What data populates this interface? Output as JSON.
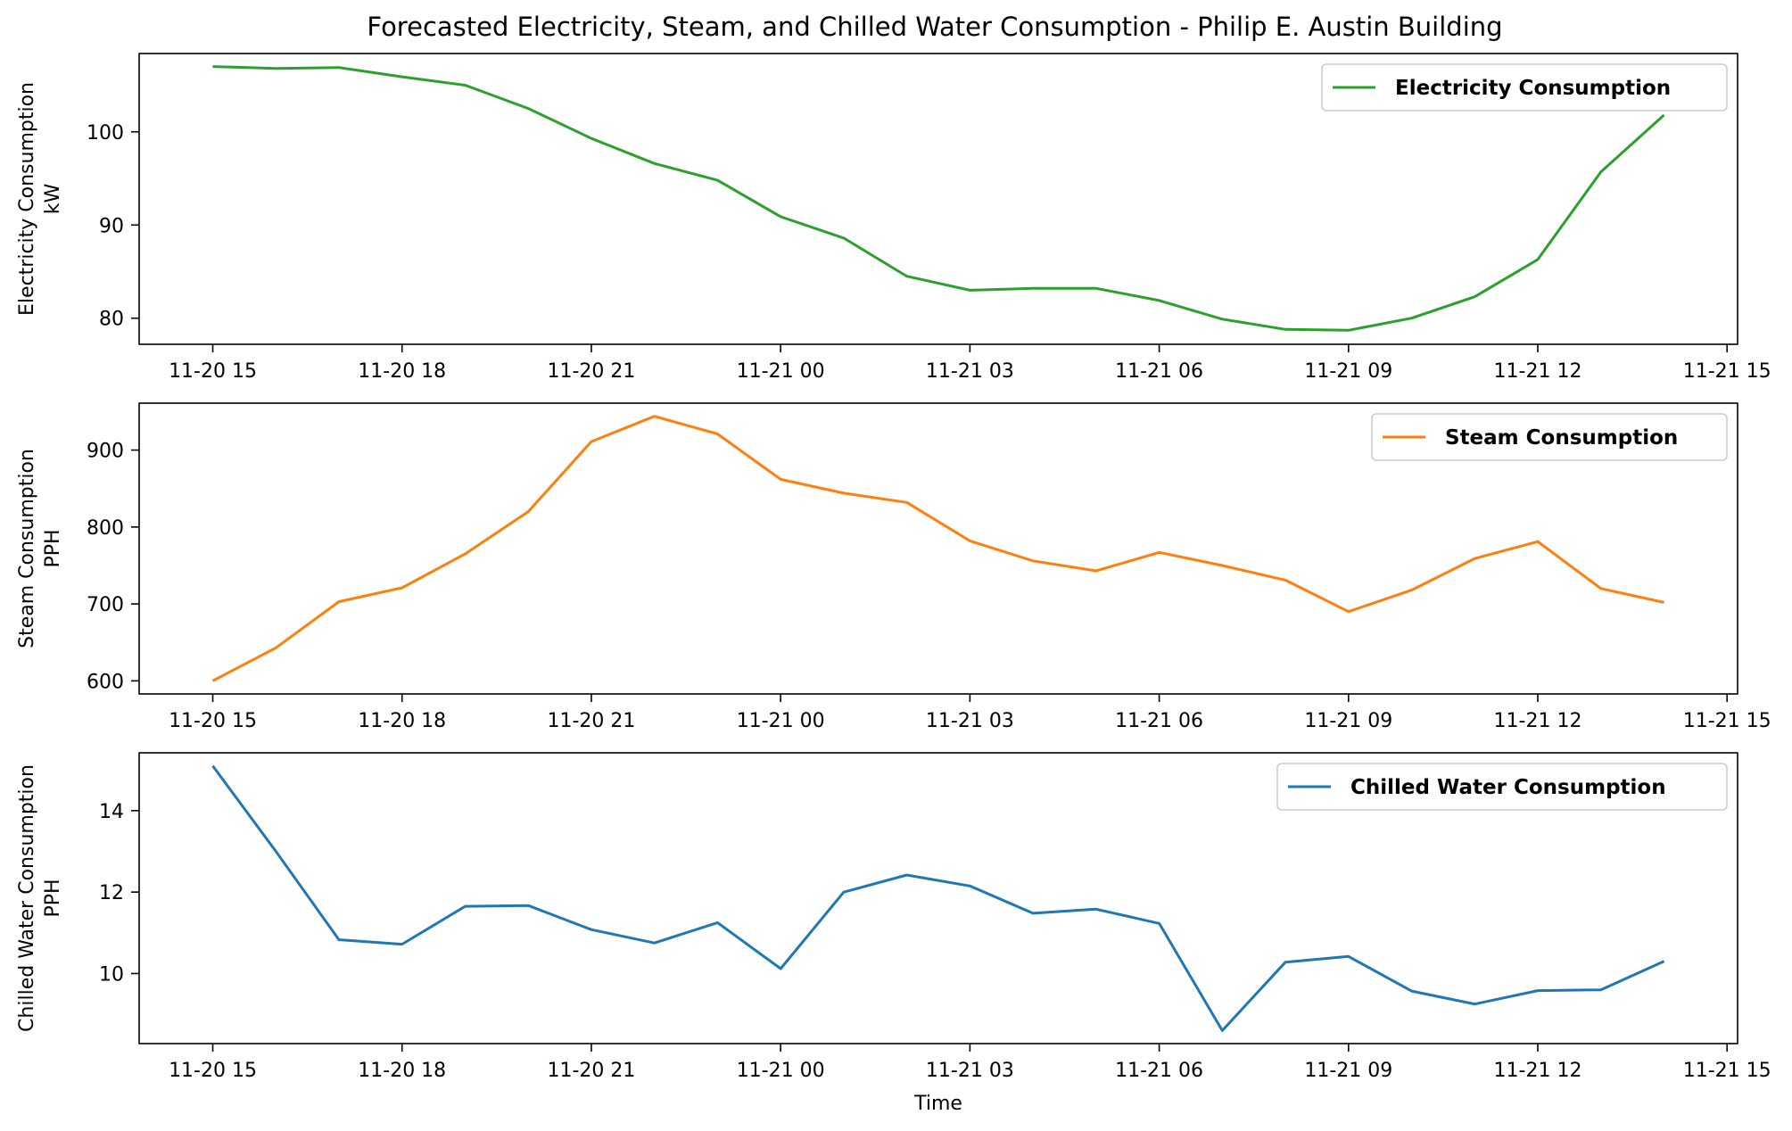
{
  "title": "Forecasted Electricity, Steam, and Chilled Water Consumption - Philip E. Austin Building",
  "chart_data": [
    {
      "type": "line",
      "ylabel_line1": "Electricity Consumption",
      "ylabel_line2": "kW",
      "xlabel": "",
      "legend_position": "upper right",
      "grid": false,
      "color": "#2ca02c",
      "x_ticks": [
        "11-20 15",
        "11-20 18",
        "11-20 21",
        "11-21 00",
        "11-21 03",
        "11-21 06",
        "11-21 09",
        "11-21 12",
        "11-21 15"
      ],
      "x_range": [
        "11-20 13:50",
        "11-21 15:10"
      ],
      "ylim": [
        77.2,
        108.4
      ],
      "y_ticks": [
        80,
        90,
        100
      ],
      "series": [
        {
          "name": "Electricity Consumption",
          "x": [
            "11-20 15:00",
            "11-20 16:00",
            "11-20 17:00",
            "11-20 18:00",
            "11-20 19:00",
            "11-20 20:00",
            "11-20 21:00",
            "11-20 22:00",
            "11-20 23:00",
            "11-21 00:00",
            "11-21 01:00",
            "11-21 02:00",
            "11-21 03:00",
            "11-21 04:00",
            "11-21 05:00",
            "11-21 06:00",
            "11-21 07:00",
            "11-21 08:00",
            "11-21 09:00",
            "11-21 10:00",
            "11-21 11:00",
            "11-21 12:00",
            "11-21 13:00",
            "11-21 14:00"
          ],
          "values": [
            107.0,
            106.8,
            106.9,
            105.9,
            105.0,
            102.5,
            99.3,
            96.6,
            94.8,
            90.9,
            88.6,
            84.5,
            83.0,
            83.2,
            83.2,
            81.9,
            79.9,
            78.8,
            78.7,
            80.0,
            82.3,
            86.3,
            95.7,
            101.8
          ]
        }
      ]
    },
    {
      "type": "line",
      "ylabel_line1": "Steam Consumption",
      "ylabel_line2": "PPH",
      "xlabel": "",
      "legend_position": "upper right",
      "grid": false,
      "color": "#ff7f0e",
      "x_ticks": [
        "11-20 15",
        "11-20 18",
        "11-20 21",
        "11-21 00",
        "11-21 03",
        "11-21 06",
        "11-21 09",
        "11-21 12",
        "11-21 15"
      ],
      "x_range": [
        "11-20 13:50",
        "11-21 15:10"
      ],
      "ylim": [
        583,
        961
      ],
      "y_ticks": [
        600,
        700,
        800,
        900
      ],
      "series": [
        {
          "name": "Steam Consumption",
          "x": [
            "11-20 15:00",
            "11-20 16:00",
            "11-20 17:00",
            "11-20 18:00",
            "11-20 19:00",
            "11-20 20:00",
            "11-20 21:00",
            "11-20 22:00",
            "11-20 23:00",
            "11-21 00:00",
            "11-21 01:00",
            "11-21 02:00",
            "11-21 03:00",
            "11-21 04:00",
            "11-21 05:00",
            "11-21 06:00",
            "11-21 07:00",
            "11-21 08:00",
            "11-21 09:00",
            "11-21 10:00",
            "11-21 11:00",
            "11-21 12:00",
            "11-21 13:00",
            "11-21 14:00"
          ],
          "values": [
            600,
            643,
            703,
            721,
            765,
            820,
            911,
            944,
            921,
            862,
            844,
            832,
            782,
            756,
            743,
            767,
            750,
            731,
            690,
            718,
            759,
            781,
            720,
            702
          ]
        }
      ]
    },
    {
      "type": "line",
      "ylabel_line1": "Chilled Water Consumption",
      "ylabel_line2": "PPH",
      "xlabel": "Time",
      "legend_position": "upper right",
      "grid": false,
      "color": "#1f77b4",
      "x_ticks": [
        "11-20 15",
        "11-20 18",
        "11-20 21",
        "11-21 00",
        "11-21 03",
        "11-21 06",
        "11-21 09",
        "11-21 12",
        "11-21 15"
      ],
      "x_range": [
        "11-20 13:50",
        "11-21 15:10"
      ],
      "ylim": [
        8.28,
        15.42
      ],
      "y_ticks": [
        10,
        12,
        14
      ],
      "series": [
        {
          "name": "Chilled Water Consumption",
          "x": [
            "11-20 15:00",
            "11-20 16:00",
            "11-20 17:00",
            "11-20 18:00",
            "11-20 19:00",
            "11-20 20:00",
            "11-20 21:00",
            "11-20 22:00",
            "11-20 23:00",
            "11-21 00:00",
            "11-21 01:00",
            "11-21 02:00",
            "11-21 03:00",
            "11-21 04:00",
            "11-21 05:00",
            "11-21 06:00",
            "11-21 07:00",
            "11-21 08:00",
            "11-21 09:00",
            "11-21 10:00",
            "11-21 11:00",
            "11-21 12:00",
            "11-21 13:00",
            "11-21 14:00"
          ],
          "values": [
            15.1,
            13.0,
            10.83,
            10.72,
            11.65,
            11.67,
            11.08,
            10.75,
            11.25,
            10.12,
            12.0,
            12.42,
            12.15,
            11.48,
            11.58,
            11.23,
            8.6,
            10.28,
            10.42,
            9.57,
            9.25,
            9.58,
            9.6,
            10.3
          ]
        }
      ]
    }
  ]
}
